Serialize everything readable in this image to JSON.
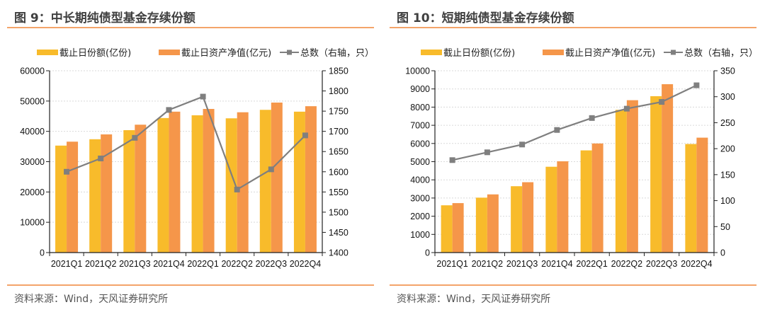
{
  "colors": {
    "shares": "#f8bb2b",
    "nav": "#f5964a",
    "count": "#7f7f7f",
    "rule": "#f4a46a"
  },
  "chart_data": [
    {
      "type": "bar",
      "title": "图 9：中长期纯债型基金存续份额",
      "source": "资料来源：Wind，天风证券研究所",
      "categories": [
        "2021Q1",
        "2021Q2",
        "2021Q3",
        "2021Q4",
        "2022Q1",
        "2022Q2",
        "2022Q3",
        "2022Q4"
      ],
      "series": [
        {
          "name": "截止日份额(亿份)",
          "type": "bar",
          "axis": "left",
          "values": [
            35300,
            37400,
            40400,
            44400,
            45300,
            44300,
            47100,
            46500
          ]
        },
        {
          "name": "截止日资产净值(亿元)",
          "type": "bar",
          "axis": "left",
          "values": [
            36600,
            39000,
            42200,
            46500,
            47400,
            46300,
            49500,
            48300
          ]
        },
        {
          "name": "总数（右轴，只）",
          "type": "line",
          "axis": "right",
          "values": [
            1600,
            1633,
            1684,
            1753,
            1786,
            1556,
            1606,
            1690
          ]
        }
      ],
      "ylim": [
        0,
        60000
      ],
      "yticks": [
        "0",
        "10000",
        "20000",
        "30000",
        "40000",
        "50000",
        "60000"
      ],
      "y2lim": [
        1400,
        1850
      ],
      "y2ticks": [
        "1400",
        "1450",
        "1500",
        "1550",
        "1600",
        "1650",
        "1700",
        "1750",
        "1800",
        "1850"
      ],
      "legend": "top",
      "grid": true
    },
    {
      "type": "bar",
      "title": "图 10：短期纯债型基金存续份额",
      "source": "资料来源：Wind，天风证券研究所",
      "categories": [
        "2021Q1",
        "2021Q2",
        "2021Q3",
        "2021Q4",
        "2022Q1",
        "2022Q2",
        "2022Q3",
        "2022Q4"
      ],
      "series": [
        {
          "name": "截止日份额(亿份)",
          "type": "bar",
          "axis": "left",
          "values": [
            2600,
            3020,
            3650,
            4720,
            5620,
            7850,
            8600,
            5970
          ]
        },
        {
          "name": "截止日资产净值(亿元)",
          "type": "bar",
          "axis": "left",
          "values": [
            2720,
            3200,
            3870,
            5020,
            6000,
            8380,
            9260,
            6320
          ]
        },
        {
          "name": "总数（右轴，只）",
          "type": "line",
          "axis": "right",
          "values": [
            178,
            193,
            208,
            236,
            259,
            277,
            290,
            322
          ]
        }
      ],
      "ylim": [
        0,
        10000
      ],
      "yticks": [
        "0",
        "1000",
        "2000",
        "3000",
        "4000",
        "5000",
        "6000",
        "7000",
        "8000",
        "9000",
        "10000"
      ],
      "y2lim": [
        0,
        350
      ],
      "y2ticks": [
        "0",
        "50",
        "100",
        "150",
        "200",
        "250",
        "300",
        "350"
      ],
      "legend": "top",
      "grid": true
    }
  ]
}
